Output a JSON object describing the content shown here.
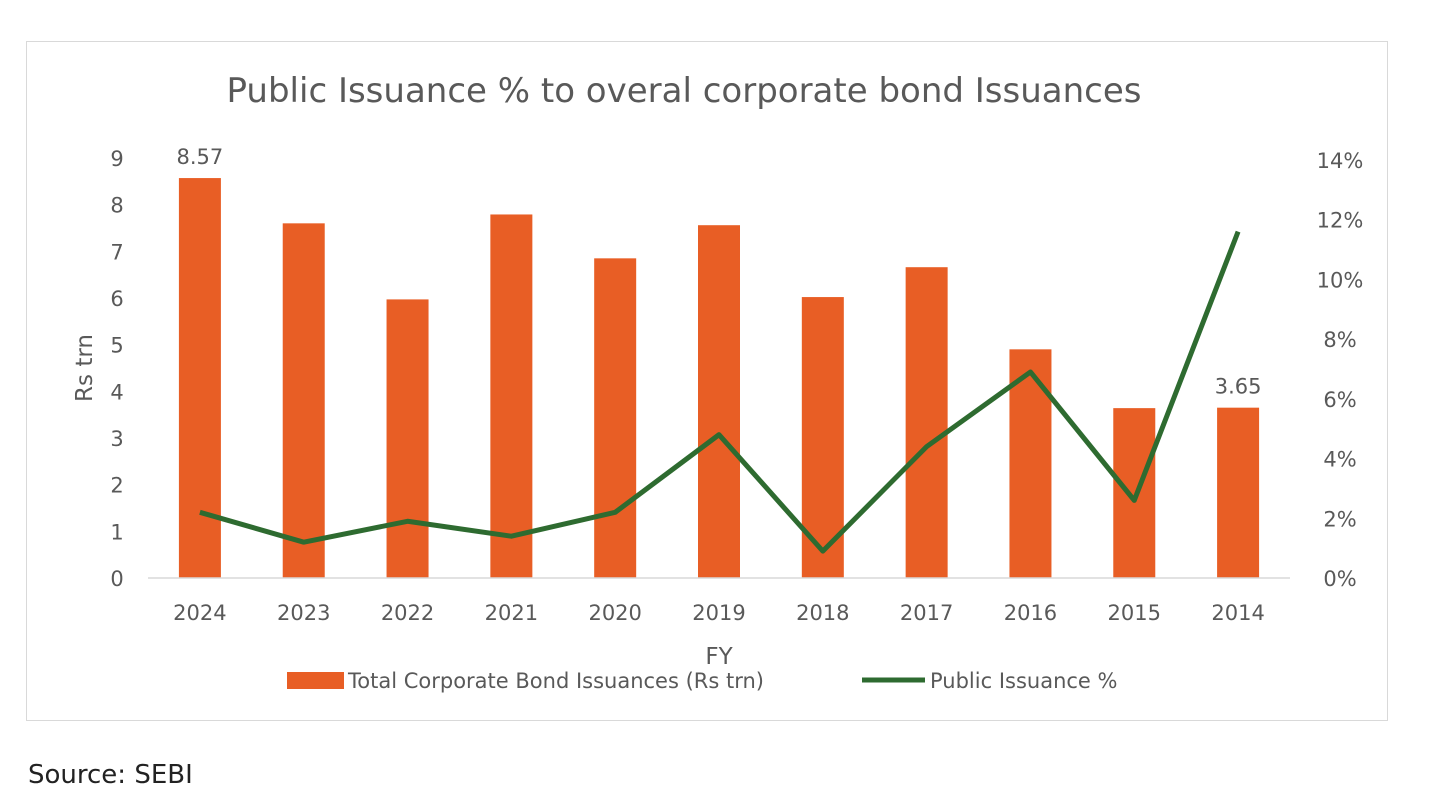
{
  "chart_data": {
    "type": "bar+line",
    "title": "Public Issuance % to overal corporate bond Issuances",
    "xlabel": "FY",
    "ylabel": "Rs trn",
    "y2label": "",
    "categories": [
      "2024",
      "2023",
      "2022",
      "2021",
      "2020",
      "2019",
      "2018",
      "2017",
      "2016",
      "2015",
      "2014"
    ],
    "series": [
      {
        "name": "Total Corporate Bond Issuances (Rs trn)",
        "type": "bar",
        "axis": "left",
        "color": "#E85E25",
        "values": [
          8.57,
          7.6,
          5.97,
          7.79,
          6.85,
          7.56,
          6.02,
          6.66,
          4.9,
          3.64,
          3.65
        ]
      },
      {
        "name": "Public Issuance %",
        "type": "line",
        "axis": "right",
        "color": "#2E6B30",
        "values": [
          2.2,
          1.2,
          1.9,
          1.4,
          2.2,
          4.8,
          0.9,
          4.4,
          6.9,
          2.6,
          11.6
        ]
      }
    ],
    "data_labels": [
      {
        "category": "2024",
        "text": "8.57"
      },
      {
        "category": "2014",
        "text": "3.65"
      }
    ],
    "ylim": [
      0,
      9
    ],
    "yticks": [
      "0",
      "1",
      "2",
      "3",
      "4",
      "5",
      "6",
      "7",
      "8",
      "9"
    ],
    "y2lim": [
      0,
      14
    ],
    "y2ticks": [
      "0%",
      "2%",
      "4%",
      "6%",
      "8%",
      "10%",
      "12%",
      "14%"
    ],
    "grid": false,
    "legend": "bottom"
  },
  "source": "Source: SEBI"
}
